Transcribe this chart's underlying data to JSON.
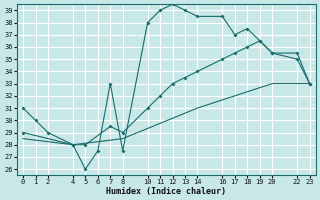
{
  "xlabel": "Humidex (Indice chaleur)",
  "background_color": "#c8e8e8",
  "grid_color": "#ffffff",
  "line_color": "#1a6b6b",
  "ylim": [
    25.5,
    39.5
  ],
  "xlim": [
    -0.5,
    23.5
  ],
  "yticks": [
    26,
    27,
    28,
    29,
    30,
    31,
    32,
    33,
    34,
    35,
    36,
    37,
    38,
    39
  ],
  "xticks_all": [
    0,
    1,
    2,
    3,
    4,
    5,
    6,
    7,
    8,
    9,
    10,
    11,
    12,
    13,
    14,
    15,
    16,
    17,
    18,
    19,
    20,
    21,
    22,
    23
  ],
  "xtick_labeled": [
    0,
    1,
    2,
    4,
    5,
    6,
    7,
    8,
    10,
    11,
    12,
    13,
    14,
    16,
    17,
    18,
    19,
    20,
    22,
    23
  ],
  "xtick_labels": [
    "0",
    "1",
    "2",
    "4",
    "5",
    "6",
    "7",
    "8",
    "10",
    "11",
    "12",
    "13",
    "14",
    "16",
    "17",
    "18",
    "19",
    "20",
    "22",
    "23"
  ],
  "line1_x": [
    0,
    1,
    2,
    4,
    5,
    6,
    7,
    8,
    10,
    11,
    12,
    13,
    14,
    16,
    17,
    18,
    19,
    20,
    22,
    23
  ],
  "line1_y": [
    31,
    30,
    29,
    28,
    26,
    27.5,
    33,
    27.5,
    38,
    39,
    39.5,
    39,
    38.5,
    38.5,
    37,
    37.5,
    36.5,
    35.5,
    35,
    33
  ],
  "line2_x": [
    0,
    4,
    5,
    7,
    8,
    10,
    11,
    12,
    13,
    14,
    16,
    17,
    18,
    19,
    20,
    22,
    23
  ],
  "line2_y": [
    29,
    28,
    28,
    29.5,
    29,
    31,
    32,
    33,
    33.5,
    34,
    35,
    35.5,
    36,
    36.5,
    35.5,
    35.5,
    33
  ],
  "line3_x": [
    0,
    4,
    8,
    14,
    20,
    23
  ],
  "line3_y": [
    28.5,
    28,
    28.5,
    31,
    33,
    33
  ]
}
